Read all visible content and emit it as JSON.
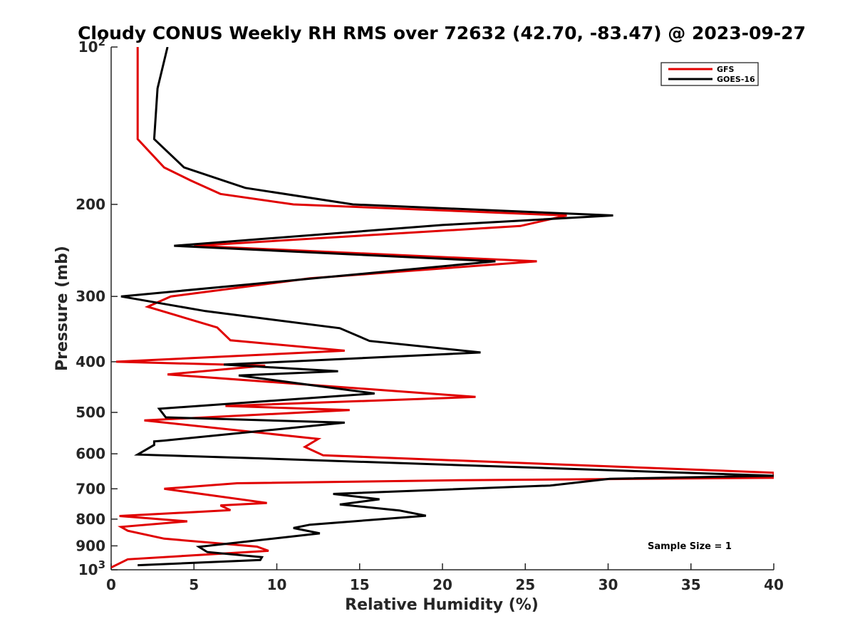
{
  "chart_data": {
    "type": "line",
    "title": "Cloudy CONUS Weekly RH RMS over 72632 (42.70, -83.47) @ 2023-09-27",
    "xlabel": "Relative Humidity (%)",
    "ylabel": "Pressure (mb)",
    "xlim": [
      0,
      40
    ],
    "ylim": [
      100,
      1000
    ],
    "y_scale": "log",
    "y_reversed": true,
    "x_ticks": [
      0,
      5,
      10,
      15,
      20,
      25,
      30,
      35,
      40
    ],
    "y_ticks": [
      {
        "value": 100,
        "base": "10",
        "exp": "2"
      },
      {
        "value": 200,
        "label": "200"
      },
      {
        "value": 300,
        "label": "300"
      },
      {
        "value": 400,
        "label": "400"
      },
      {
        "value": 500,
        "label": "500"
      },
      {
        "value": 600,
        "label": "600"
      },
      {
        "value": 700,
        "label": "700"
      },
      {
        "value": 800,
        "label": "800"
      },
      {
        "value": 900,
        "label": "900"
      },
      {
        "value": 1000,
        "base": "10",
        "exp": "3"
      }
    ],
    "grid": false,
    "legend_position": "top-right",
    "annotation": "Sample Size = 1",
    "series": [
      {
        "name": "GFS",
        "color": "#e00000",
        "points": [
          [
            1.6,
            100
          ],
          [
            1.6,
            150
          ],
          [
            3.2,
            170
          ],
          [
            4.8,
            180
          ],
          [
            6.6,
            191
          ],
          [
            11.0,
            200
          ],
          [
            27.5,
            210
          ],
          [
            24.7,
            220
          ],
          [
            5.0,
            240
          ],
          [
            25.7,
            257
          ],
          [
            12.0,
            277
          ],
          [
            3.6,
            300
          ],
          [
            2.2,
            314
          ],
          [
            6.4,
            344
          ],
          [
            7.2,
            364
          ],
          [
            14.1,
            381
          ],
          [
            0.3,
            400
          ],
          [
            9.3,
            407
          ],
          [
            3.4,
            423
          ],
          [
            22.0,
            467
          ],
          [
            6.9,
            486
          ],
          [
            14.4,
            495
          ],
          [
            2.0,
            518
          ],
          [
            12.5,
            562
          ],
          [
            11.7,
            582
          ],
          [
            12.8,
            604
          ],
          [
            40.0,
            652
          ],
          [
            40.0,
            667
          ],
          [
            21.0,
            674
          ],
          [
            7.6,
            683
          ],
          [
            3.2,
            700
          ],
          [
            9.4,
            745
          ],
          [
            6.6,
            753
          ],
          [
            7.2,
            769
          ],
          [
            0.5,
            789
          ],
          [
            4.6,
            808
          ],
          [
            0.6,
            828
          ],
          [
            1.0,
            842
          ],
          [
            3.2,
            872
          ],
          [
            8.8,
            903
          ],
          [
            9.5,
            920
          ],
          [
            1.0,
            955
          ],
          [
            0.0,
            990
          ]
        ]
      },
      {
        "name": "GOES-16",
        "color": "#000000",
        "points": [
          [
            3.4,
            100
          ],
          [
            2.8,
            120
          ],
          [
            2.6,
            150
          ],
          [
            4.4,
            170
          ],
          [
            8.1,
            186
          ],
          [
            14.6,
            200
          ],
          [
            30.3,
            210
          ],
          [
            20.0,
            219
          ],
          [
            3.8,
            240
          ],
          [
            23.2,
            257
          ],
          [
            0.6,
            300
          ],
          [
            5.7,
            320
          ],
          [
            13.8,
            345
          ],
          [
            15.6,
            365
          ],
          [
            22.3,
            384
          ],
          [
            6.8,
            405
          ],
          [
            13.7,
            417
          ],
          [
            7.7,
            425
          ],
          [
            15.9,
            460
          ],
          [
            2.9,
            492
          ],
          [
            3.3,
            511
          ],
          [
            14.1,
            523
          ],
          [
            3.2,
            566
          ],
          [
            2.6,
            568
          ],
          [
            2.6,
            577
          ],
          [
            1.6,
            602
          ],
          [
            8.9,
            612
          ],
          [
            40.0,
            661
          ],
          [
            30.1,
            670
          ],
          [
            26.5,
            690
          ],
          [
            13.4,
            716
          ],
          [
            16.2,
            733
          ],
          [
            13.8,
            750
          ],
          [
            17.4,
            770
          ],
          [
            19.0,
            788
          ],
          [
            12.0,
            820
          ],
          [
            11.0,
            832
          ],
          [
            12.6,
            852
          ],
          [
            5.3,
            904
          ],
          [
            5.8,
            925
          ],
          [
            9.1,
            946
          ],
          [
            9.0,
            958
          ],
          [
            1.6,
            980
          ]
        ]
      }
    ]
  }
}
